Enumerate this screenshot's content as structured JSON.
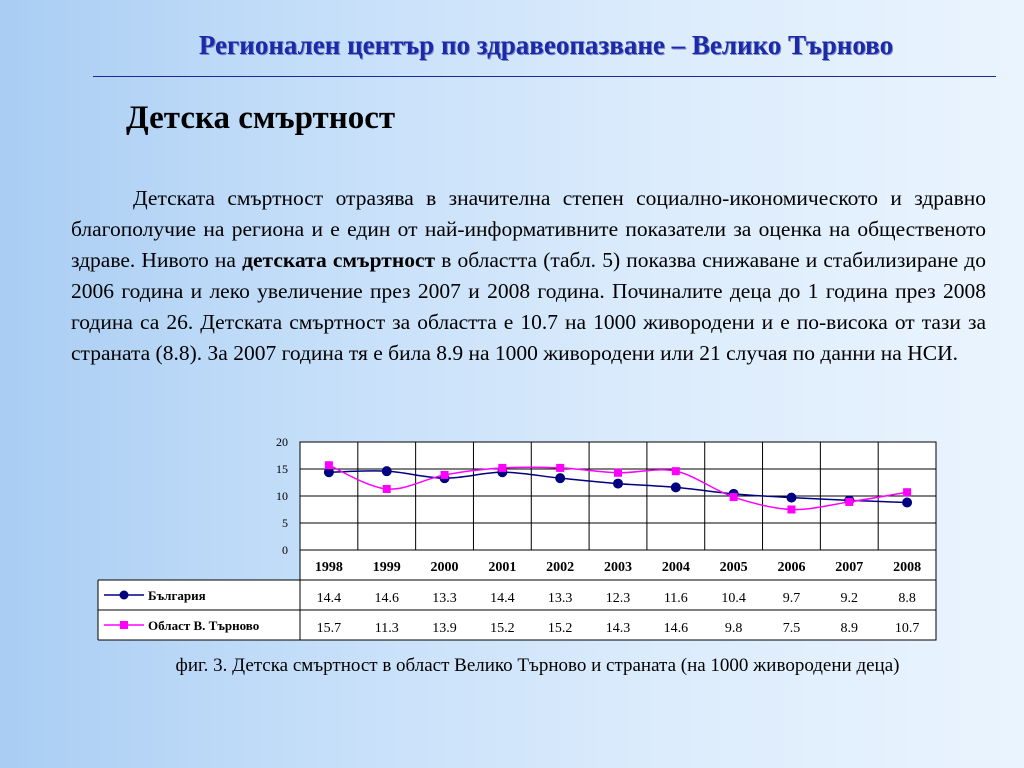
{
  "header": {
    "title": "Регионален център по здравеопазване – Велико Търново"
  },
  "slide": {
    "heading": "Детска смъртност",
    "paragraph": {
      "part1": "Детската смъртност отразява в значителна степен социално-икономическото и здравно благополучие на региона и е един от най-информативните показатели за оценка на общественото здраве. Нивото на ",
      "bold": "детската смъртност",
      "part2": " в областта (табл. 5) показва снижаване и стабилизиране до 2006 година и леко увеличение през 2007 и 2008 година. Починалите деца до 1 година през 2008 година са 26. Детската смъртност за областта е 10.7 на 1000 живородени и е по-висока от тази за страната (8.8). За 2007 година тя е била 8.9 на 1000 живородени или 21 случая по данни на НСИ."
    },
    "caption": "фиг. 3. Детска смъртност в област Велико Търново и страната (на 1000 живородени деца)"
  },
  "chart_data": {
    "type": "line",
    "categories": [
      "1998",
      "1999",
      "2000",
      "2001",
      "2002",
      "2003",
      "2004",
      "2005",
      "2006",
      "2007",
      "2008"
    ],
    "ylim": [
      0,
      20
    ],
    "yticks": [
      "0",
      "5",
      "10",
      "15",
      "20"
    ],
    "grid": true,
    "legend": "data-table",
    "series": [
      {
        "name": "България",
        "color": "#000080",
        "marker": "circle",
        "values": [
          14.4,
          14.6,
          13.3,
          14.4,
          13.3,
          12.3,
          11.6,
          10.4,
          9.7,
          9.2,
          8.8
        ],
        "labels": [
          "14.4",
          "14.6",
          "13.3",
          "14.4",
          "13.3",
          "12.3",
          "11.6",
          "10.4",
          "9.7",
          "9.2",
          "8.8"
        ]
      },
      {
        "name": "Област В. Търново",
        "color": "#ff00ff",
        "marker": "square",
        "values": [
          15.7,
          11.3,
          13.9,
          15.2,
          15.2,
          14.3,
          14.6,
          9.8,
          7.5,
          8.9,
          10.7
        ],
        "labels": [
          "15.7",
          "11.3",
          "13.9",
          "15.2",
          "15.2",
          "14.3",
          "14.6",
          "9.8",
          "7.5",
          "8.9",
          "10.7"
        ]
      }
    ]
  }
}
